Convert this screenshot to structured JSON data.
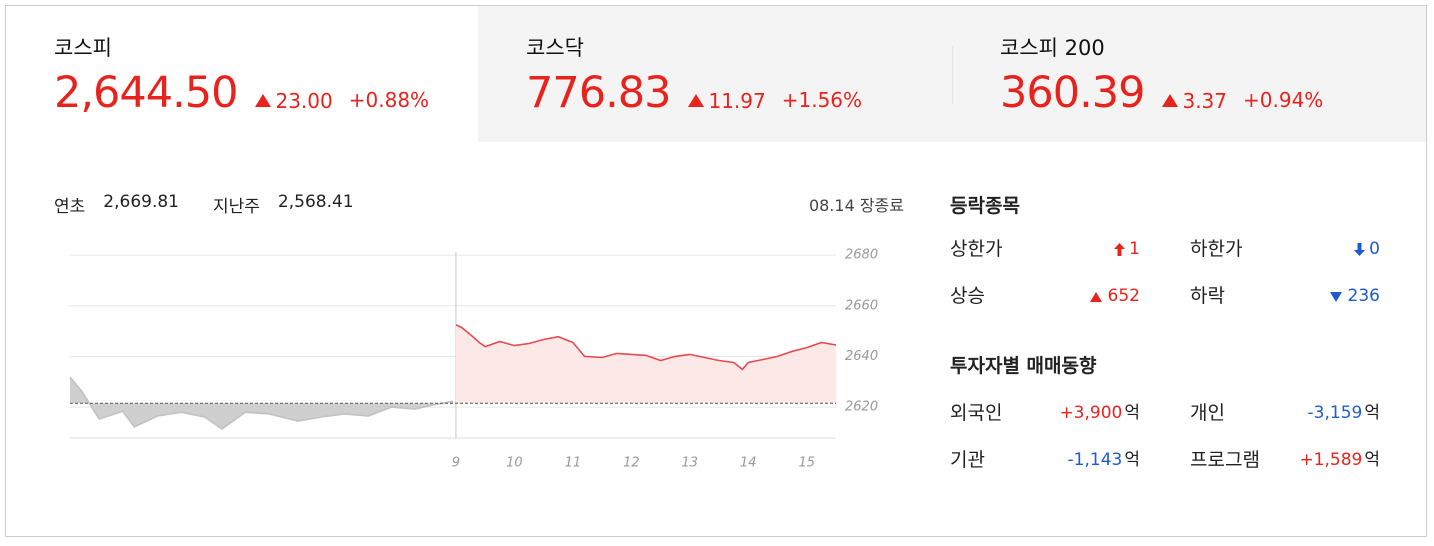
{
  "tabs": [
    {
      "name": "코스피",
      "value": "2,644.50",
      "change": "23.00",
      "change_rate": "+0.88%"
    },
    {
      "name": "코스닥",
      "value": "776.83",
      "change": "11.97",
      "change_rate": "+1.56%"
    },
    {
      "name": "코스피 200",
      "value": "360.39",
      "change": "3.37",
      "change_rate": "+0.94%"
    }
  ],
  "summary": {
    "items": [
      {
        "label": "연초",
        "value": "2,669.81"
      },
      {
        "label": "지난주",
        "value": "2,568.41"
      }
    ],
    "status": "08.14 장종료"
  },
  "chart_data": {
    "type": "line",
    "series": [
      {
        "color": "#e8484f",
        "fill": "#fde8e8",
        "x": [
          9,
          9.1,
          9.25,
          9.4,
          9.5,
          9.75,
          10,
          10.25,
          10.5,
          10.75,
          11,
          11.2,
          11.5,
          11.75,
          12,
          12.25,
          12.5,
          12.75,
          13,
          13.25,
          13.5,
          13.75,
          13.9,
          14,
          14.25,
          14.5,
          14.75,
          15,
          15.25,
          15.5
        ],
        "values": [
          2652.5,
          2651.4,
          2648.6,
          2645.5,
          2643.9,
          2645.9,
          2644.3,
          2645.1,
          2646.7,
          2647.8,
          2645.5,
          2640.0,
          2639.6,
          2641.2,
          2640.8,
          2640.4,
          2638.4,
          2640.0,
          2640.8,
          2639.6,
          2638.4,
          2637.6,
          2634.9,
          2637.6,
          2638.8,
          2640.0,
          2642.0,
          2643.5,
          2645.5,
          2644.5
        ]
      },
      {
        "color": "#c2c2c2",
        "fill": "#cfcfcf",
        "x": [
          2.4,
          2.6,
          2.9,
          3.3,
          3.5,
          3.9,
          4.3,
          4.7,
          5.0,
          5.4,
          5.8,
          6.3,
          6.7,
          7.1,
          7.5,
          7.9,
          8.3,
          8.6,
          8.95
        ],
        "values": [
          2631.8,
          2626.3,
          2615.3,
          2618.4,
          2612.2,
          2616.5,
          2618.0,
          2616.1,
          2611.4,
          2618.0,
          2617.3,
          2614.5,
          2616.1,
          2617.3,
          2616.5,
          2620.0,
          2619.2,
          2620.8,
          2622.3
        ]
      }
    ],
    "reference_line": 2621.5,
    "xlim": [
      2.4,
      15.5
    ],
    "xticks": [
      9,
      10,
      11,
      12,
      13,
      14,
      15
    ],
    "ylim": [
      2607.8,
      2684
    ],
    "yticks": [
      2620,
      2640,
      2660,
      2680
    ],
    "grid": true
  },
  "updown": {
    "title": "등락종목",
    "items": [
      {
        "label": "상한가",
        "value": "1"
      },
      {
        "label": "하한가",
        "value": "0"
      },
      {
        "label": "상승",
        "value": "652"
      },
      {
        "label": "하락",
        "value": "236"
      }
    ]
  },
  "investors": {
    "title": "투자자별 매매동향",
    "items": [
      {
        "label": "외국인",
        "value": "+3,900",
        "unit": "억"
      },
      {
        "label": "개인",
        "value": "-3,159",
        "unit": "억"
      },
      {
        "label": "기관",
        "value": "-1,143",
        "unit": "억"
      },
      {
        "label": "프로그램",
        "value": "+1,589",
        "unit": "억"
      }
    ]
  }
}
